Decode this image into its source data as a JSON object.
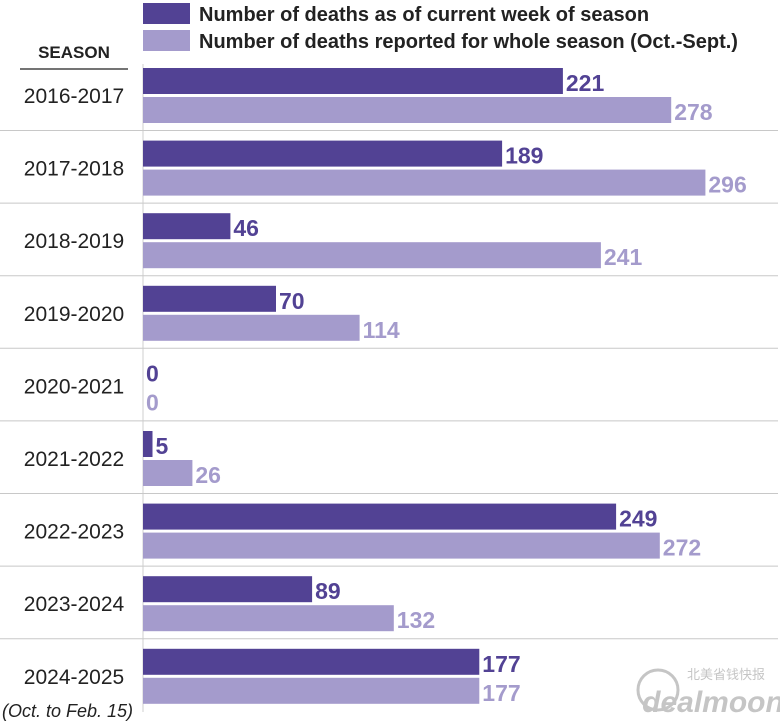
{
  "chart_data": {
    "type": "bar",
    "orientation": "horizontal",
    "category_header": "SEASON",
    "categories": [
      "2016-2017",
      "2017-2018",
      "2018-2019",
      "2019-2020",
      "2020-2021",
      "2021-2022",
      "2022-2023",
      "2023-2024",
      "2024-2025"
    ],
    "category_note": "(Oct. to Feb. 15)",
    "series": [
      {
        "name": "Number of deaths as of current week of season",
        "color": "#524294",
        "values": [
          221,
          189,
          46,
          70,
          0,
          5,
          249,
          89,
          177
        ]
      },
      {
        "name": "Number of deaths reported for whole season (Oct.-Sept.)",
        "color": "#a49bcc",
        "values": [
          278,
          296,
          241,
          114,
          0,
          26,
          272,
          132,
          177
        ]
      }
    ],
    "xlim": [
      0,
      300
    ],
    "legend_position": "top",
    "grid": false
  },
  "watermark": {
    "text": "dealmoon",
    "subtext": "北美省钱快报"
  }
}
